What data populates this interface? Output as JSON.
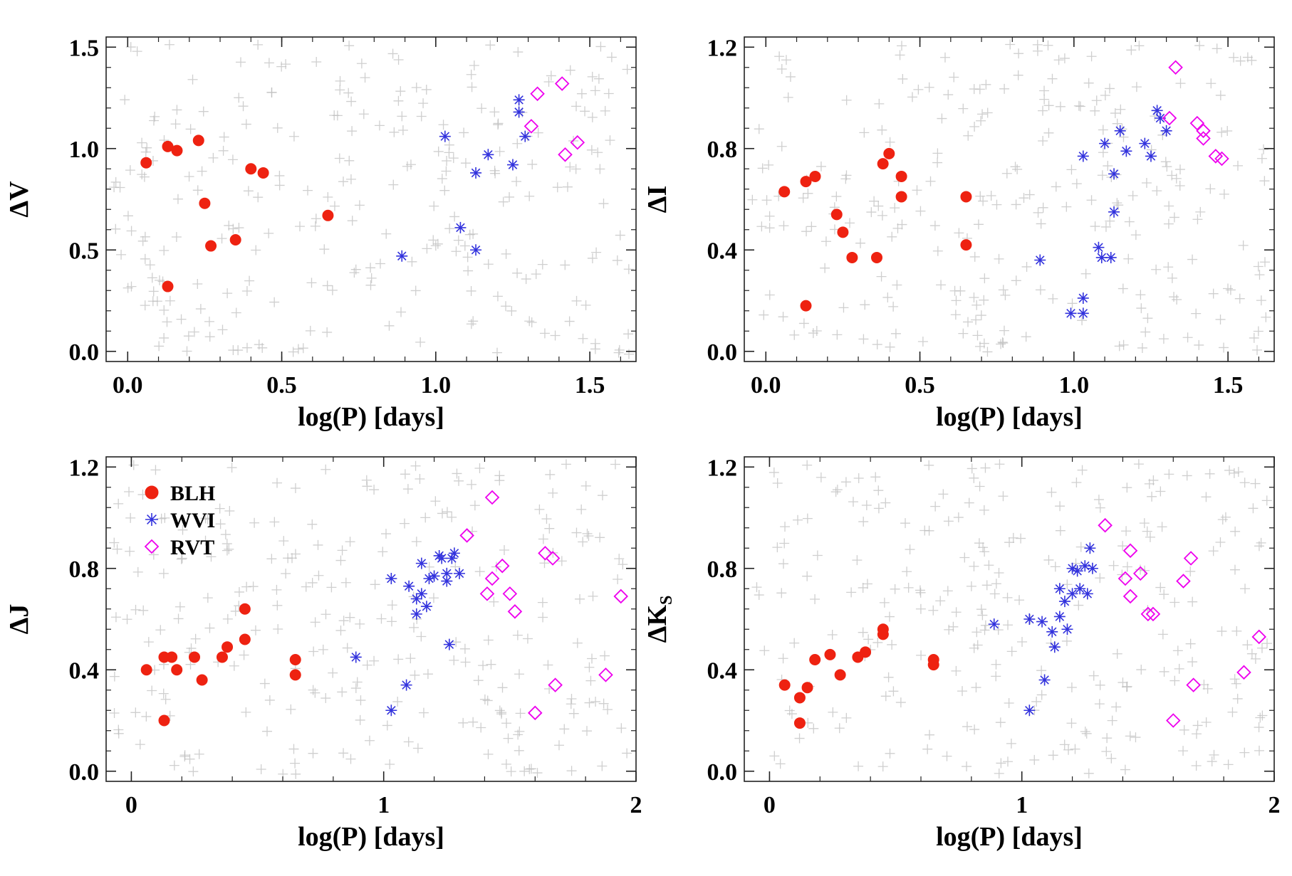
{
  "figure_title": "",
  "colors": {
    "BLH": "#ee2211",
    "WVI": "#3333dd",
    "RVT": "#ee00ee",
    "background": "#bbbbbb"
  },
  "legend": {
    "entries": [
      {
        "key": "BLH",
        "label": "BLH",
        "marker": "circle"
      },
      {
        "key": "WVI",
        "label": "WVI",
        "marker": "asterisk"
      },
      {
        "key": "RVT",
        "label": "RVT",
        "marker": "diamond"
      }
    ]
  },
  "chart_data": [
    {
      "type": "scatter",
      "title": "",
      "xlabel": "log(P) [days]",
      "ylabel": "ΔV",
      "ylabel_sub": "",
      "xlim": [
        -0.07,
        1.65
      ],
      "ylim": [
        -0.05,
        1.55
      ],
      "xticks": [
        0.0,
        0.5,
        1.0,
        1.5
      ],
      "xtick_labels": [
        "0.0",
        "0.5",
        "1.0",
        "1.5"
      ],
      "yticks": [
        0.0,
        0.5,
        1.0,
        1.5
      ],
      "ytick_labels": [
        "0.0",
        "0.5",
        "1.0",
        "1.5"
      ],
      "series": [
        {
          "name": "BLH",
          "points": [
            [
              0.06,
              0.93
            ],
            [
              0.13,
              1.01
            ],
            [
              0.16,
              0.99
            ],
            [
              0.23,
              1.04
            ],
            [
              0.25,
              0.73
            ],
            [
              0.27,
              0.52
            ],
            [
              0.13,
              0.32
            ],
            [
              0.35,
              0.55
            ],
            [
              0.4,
              0.9
            ],
            [
              0.44,
              0.88
            ],
            [
              0.65,
              0.67
            ]
          ]
        },
        {
          "name": "WVI",
          "points": [
            [
              0.89,
              0.47
            ],
            [
              1.03,
              1.06
            ],
            [
              1.08,
              0.61
            ],
            [
              1.13,
              0.5
            ],
            [
              1.13,
              0.88
            ],
            [
              1.17,
              0.97
            ],
            [
              1.25,
              0.92
            ],
            [
              1.27,
              1.18
            ],
            [
              1.27,
              1.24
            ],
            [
              1.29,
              1.06
            ]
          ]
        },
        {
          "name": "RVT",
          "points": [
            [
              1.31,
              1.11
            ],
            [
              1.33,
              1.27
            ],
            [
              1.41,
              1.32
            ],
            [
              1.42,
              0.97
            ],
            [
              1.46,
              1.03
            ]
          ]
        }
      ]
    },
    {
      "type": "scatter",
      "title": "",
      "xlabel": "log(P) [days]",
      "ylabel": "ΔI",
      "ylabel_sub": "",
      "xlim": [
        -0.07,
        1.65
      ],
      "ylim": [
        -0.04,
        1.24
      ],
      "xticks": [
        0.0,
        0.5,
        1.0,
        1.5
      ],
      "xtick_labels": [
        "0.0",
        "0.5",
        "1.0",
        "1.5"
      ],
      "yticks": [
        0.0,
        0.4,
        0.8,
        1.2
      ],
      "ytick_labels": [
        "0.0",
        "0.4",
        "0.8",
        "1.2"
      ],
      "series": [
        {
          "name": "BLH",
          "points": [
            [
              0.06,
              0.63
            ],
            [
              0.13,
              0.67
            ],
            [
              0.16,
              0.69
            ],
            [
              0.13,
              0.18
            ],
            [
              0.23,
              0.54
            ],
            [
              0.25,
              0.47
            ],
            [
              0.28,
              0.37
            ],
            [
              0.36,
              0.37
            ],
            [
              0.38,
              0.74
            ],
            [
              0.4,
              0.78
            ],
            [
              0.44,
              0.69
            ],
            [
              0.44,
              0.61
            ],
            [
              0.65,
              0.61
            ],
            [
              0.65,
              0.42
            ]
          ]
        },
        {
          "name": "WVI",
          "points": [
            [
              0.89,
              0.36
            ],
            [
              0.99,
              0.15
            ],
            [
              1.03,
              0.15
            ],
            [
              1.03,
              0.21
            ],
            [
              1.03,
              0.77
            ],
            [
              1.08,
              0.41
            ],
            [
              1.09,
              0.37
            ],
            [
              1.1,
              0.82
            ],
            [
              1.12,
              0.37
            ],
            [
              1.13,
              0.55
            ],
            [
              1.13,
              0.7
            ],
            [
              1.15,
              0.87
            ],
            [
              1.17,
              0.79
            ],
            [
              1.23,
              0.82
            ],
            [
              1.25,
              0.77
            ],
            [
              1.27,
              0.95
            ],
            [
              1.28,
              0.92
            ],
            [
              1.3,
              0.87
            ]
          ]
        },
        {
          "name": "RVT",
          "points": [
            [
              1.31,
              0.92
            ],
            [
              1.33,
              1.12
            ],
            [
              1.4,
              0.9
            ],
            [
              1.42,
              0.87
            ],
            [
              1.42,
              0.84
            ],
            [
              1.46,
              0.77
            ],
            [
              1.48,
              0.76
            ]
          ]
        }
      ]
    },
    {
      "type": "scatter",
      "title": "",
      "xlabel": "log(P) [days]",
      "ylabel": "ΔJ",
      "ylabel_sub": "",
      "xlim": [
        -0.1,
        2.0
      ],
      "ylim": [
        -0.04,
        1.24
      ],
      "xticks": [
        0,
        1,
        2
      ],
      "xtick_labels": [
        "0",
        "1",
        "2"
      ],
      "yticks": [
        0.0,
        0.4,
        0.8,
        1.2
      ],
      "ytick_labels": [
        "0.0",
        "0.4",
        "0.8",
        "1.2"
      ],
      "show_legend": true,
      "series": [
        {
          "name": "BLH",
          "points": [
            [
              0.06,
              0.4
            ],
            [
              0.13,
              0.2
            ],
            [
              0.13,
              0.45
            ],
            [
              0.16,
              0.45
            ],
            [
              0.18,
              0.4
            ],
            [
              0.25,
              0.45
            ],
            [
              0.28,
              0.36
            ],
            [
              0.36,
              0.45
            ],
            [
              0.38,
              0.49
            ],
            [
              0.45,
              0.52
            ],
            [
              0.45,
              0.64
            ],
            [
              0.65,
              0.44
            ],
            [
              0.65,
              0.38
            ]
          ]
        },
        {
          "name": "WVI",
          "points": [
            [
              0.89,
              0.45
            ],
            [
              1.03,
              0.76
            ],
            [
              1.03,
              0.24
            ],
            [
              1.09,
              0.34
            ],
            [
              1.1,
              0.73
            ],
            [
              1.13,
              0.68
            ],
            [
              1.13,
              0.62
            ],
            [
              1.15,
              0.82
            ],
            [
              1.15,
              0.7
            ],
            [
              1.17,
              0.65
            ],
            [
              1.18,
              0.76
            ],
            [
              1.2,
              0.77
            ],
            [
              1.22,
              0.85
            ],
            [
              1.23,
              0.84
            ],
            [
              1.25,
              0.75
            ],
            [
              1.25,
              0.78
            ],
            [
              1.26,
              0.5
            ],
            [
              1.27,
              0.84
            ],
            [
              1.28,
              0.86
            ],
            [
              1.3,
              0.78
            ]
          ]
        },
        {
          "name": "RVT",
          "points": [
            [
              1.33,
              0.93
            ],
            [
              1.41,
              0.7
            ],
            [
              1.43,
              0.76
            ],
            [
              1.43,
              1.08
            ],
            [
              1.47,
              0.81
            ],
            [
              1.5,
              0.7
            ],
            [
              1.52,
              0.63
            ],
            [
              1.6,
              0.23
            ],
            [
              1.64,
              0.86
            ],
            [
              1.67,
              0.84
            ],
            [
              1.68,
              0.34
            ],
            [
              1.88,
              0.38
            ],
            [
              1.94,
              0.69
            ]
          ]
        }
      ]
    },
    {
      "type": "scatter",
      "title": "",
      "xlabel": "log(P) [days]",
      "ylabel": "ΔK",
      "ylabel_sub": "S",
      "xlim": [
        -0.1,
        2.0
      ],
      "ylim": [
        -0.04,
        1.24
      ],
      "xticks": [
        0,
        1,
        2
      ],
      "xtick_labels": [
        "0",
        "1",
        "2"
      ],
      "yticks": [
        0.0,
        0.4,
        0.8,
        1.2
      ],
      "ytick_labels": [
        "0.0",
        "0.4",
        "0.8",
        "1.2"
      ],
      "series": [
        {
          "name": "BLH",
          "points": [
            [
              0.06,
              0.34
            ],
            [
              0.12,
              0.29
            ],
            [
              0.12,
              0.19
            ],
            [
              0.15,
              0.33
            ],
            [
              0.18,
              0.44
            ],
            [
              0.24,
              0.46
            ],
            [
              0.28,
              0.38
            ],
            [
              0.35,
              0.45
            ],
            [
              0.38,
              0.47
            ],
            [
              0.45,
              0.54
            ],
            [
              0.45,
              0.56
            ],
            [
              0.65,
              0.44
            ],
            [
              0.65,
              0.42
            ]
          ]
        },
        {
          "name": "WVI",
          "points": [
            [
              0.89,
              0.58
            ],
            [
              1.03,
              0.24
            ],
            [
              1.03,
              0.6
            ],
            [
              1.08,
              0.59
            ],
            [
              1.09,
              0.36
            ],
            [
              1.12,
              0.55
            ],
            [
              1.13,
              0.49
            ],
            [
              1.15,
              0.72
            ],
            [
              1.15,
              0.61
            ],
            [
              1.17,
              0.67
            ],
            [
              1.18,
              0.56
            ],
            [
              1.2,
              0.7
            ],
            [
              1.2,
              0.8
            ],
            [
              1.22,
              0.79
            ],
            [
              1.23,
              0.72
            ],
            [
              1.25,
              0.81
            ],
            [
              1.26,
              0.7
            ],
            [
              1.27,
              0.88
            ],
            [
              1.28,
              0.8
            ]
          ]
        },
        {
          "name": "RVT",
          "points": [
            [
              1.33,
              0.97
            ],
            [
              1.41,
              0.76
            ],
            [
              1.43,
              0.69
            ],
            [
              1.43,
              0.87
            ],
            [
              1.47,
              0.78
            ],
            [
              1.5,
              0.62
            ],
            [
              1.52,
              0.62
            ],
            [
              1.6,
              0.2
            ],
            [
              1.64,
              0.75
            ],
            [
              1.67,
              0.84
            ],
            [
              1.68,
              0.34
            ],
            [
              1.88,
              0.39
            ],
            [
              1.94,
              0.53
            ]
          ]
        }
      ]
    }
  ]
}
